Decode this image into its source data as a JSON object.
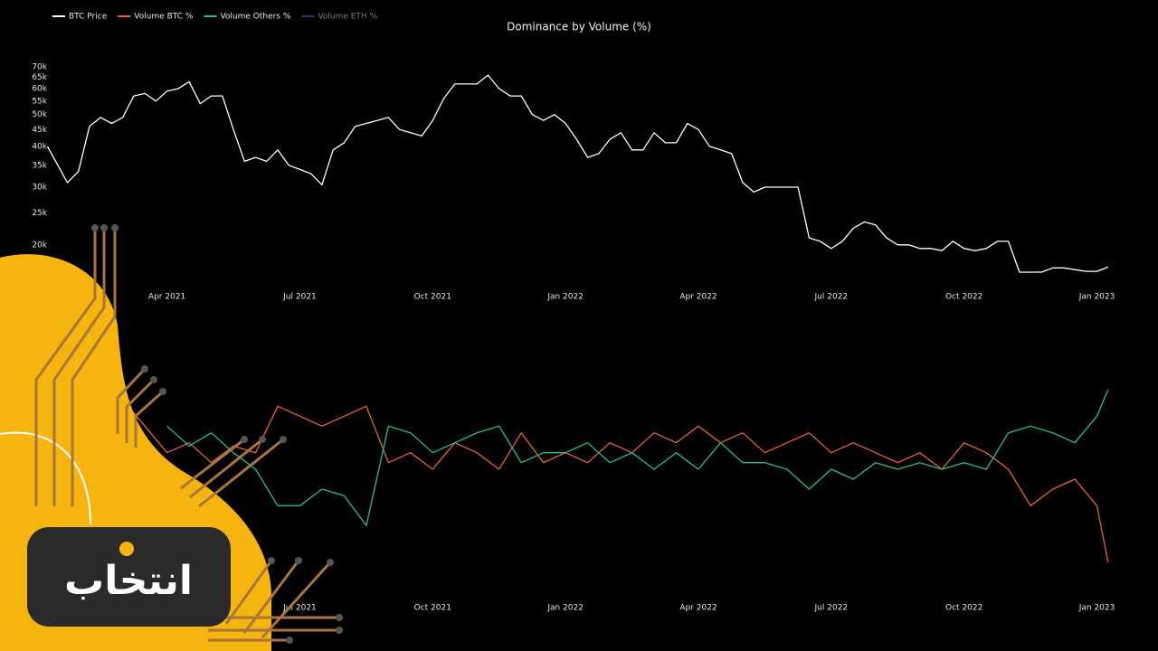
{
  "chart_data": [
    {
      "type": "line",
      "title": "Dominance by Volume (%)",
      "yscale": "log",
      "grid": false,
      "x": [
        0.3,
        0.75,
        1.0,
        1.25,
        1.5,
        1.75,
        2.0,
        2.25,
        2.5,
        2.75,
        3.0,
        3.25,
        3.5,
        3.75,
        4.0,
        4.25,
        4.5,
        4.75,
        5.0,
        5.25,
        5.5,
        5.75,
        6.0,
        6.25,
        6.5,
        6.75,
        7.0,
        7.25,
        7.5,
        7.75,
        8.0,
        8.25,
        8.5,
        8.75,
        9.0,
        9.25,
        9.5,
        9.75,
        10.0,
        10.25,
        10.5,
        10.75,
        11.0,
        11.25,
        11.5,
        11.75,
        12.0,
        12.25,
        12.5,
        12.75,
        13.0,
        13.25,
        13.5,
        13.75,
        14.0,
        14.25,
        14.5,
        14.75,
        15.0,
        15.25,
        15.5,
        15.75,
        16.0,
        16.25,
        16.5,
        16.75,
        17.0,
        17.25,
        17.5,
        17.75,
        18.0,
        18.25,
        18.5,
        18.75,
        19.0,
        19.25,
        19.5,
        19.75,
        20.0,
        20.25,
        20.5,
        20.75,
        21.0,
        21.25,
        21.5,
        21.75,
        22.0,
        22.25,
        22.5,
        22.75,
        23.0,
        23.25,
        23.5,
        23.75,
        24.0,
        24.25
      ],
      "series": [
        {
          "name": "BTC Price",
          "color": "#ffffff",
          "values": [
            40000,
            31000,
            33500,
            46000,
            49000,
            47000,
            49000,
            57000,
            58000,
            55000,
            59000,
            60000,
            63000,
            54000,
            57000,
            57000,
            45000,
            36000,
            37000,
            36000,
            39000,
            35000,
            34000,
            33000,
            30500,
            39000,
            41000,
            46000,
            47000,
            48000,
            49000,
            45000,
            44000,
            43000,
            48000,
            56000,
            62000,
            62000,
            62000,
            66000,
            60000,
            57000,
            57000,
            50000,
            48000,
            50000,
            47000,
            42000,
            37000,
            38000,
            42000,
            44000,
            39000,
            39000,
            44000,
            41000,
            41000,
            47000,
            45000,
            40000,
            39000,
            38000,
            31000,
            29000,
            30000,
            30000,
            30000,
            30000,
            21000,
            20500,
            19500,
            20500,
            22500,
            23500,
            23000,
            21000,
            20000,
            20000,
            19500,
            19500,
            19200,
            20500,
            19500,
            19200,
            19500,
            20500,
            20500,
            16500,
            16500,
            16500,
            17000,
            17000,
            16800,
            16600,
            16600,
            17100
          ]
        }
      ],
      "xlim": [
        0.25,
        24.5
      ],
      "xticks": [
        {
          "value": 3,
          "label": "Apr 2021"
        },
        {
          "value": 6,
          "label": "Jul 2021"
        },
        {
          "value": 9,
          "label": "Oct 2021"
        },
        {
          "value": 12,
          "label": "Jan 2022"
        },
        {
          "value": 15,
          "label": "Apr 2022"
        },
        {
          "value": 18,
          "label": "Jul 2022"
        },
        {
          "value": 21,
          "label": "Oct 2022"
        },
        {
          "value": 24,
          "label": "Jan 2023"
        }
      ],
      "ylim": [
        15000,
        75000
      ],
      "yticks": [
        {
          "value": 20000,
          "label": "20k"
        },
        {
          "value": 25000,
          "label": "25k"
        },
        {
          "value": 30000,
          "label": "30k"
        },
        {
          "value": 35000,
          "label": "35k"
        },
        {
          "value": 40000,
          "label": "40k"
        },
        {
          "value": 45000,
          "label": "45k"
        },
        {
          "value": 50000,
          "label": "50k"
        },
        {
          "value": 55000,
          "label": "55k"
        },
        {
          "value": 60000,
          "label": "60k"
        },
        {
          "value": 65000,
          "label": "65k"
        },
        {
          "value": 70000,
          "label": "70k"
        }
      ]
    },
    {
      "type": "line",
      "grid": false,
      "x": [
        2.0,
        2.5,
        3.0,
        3.5,
        4.0,
        4.5,
        5.0,
        5.5,
        6.0,
        6.5,
        7.0,
        7.5,
        8.0,
        8.5,
        9.0,
        9.5,
        10.0,
        10.5,
        11.0,
        11.5,
        12.0,
        12.5,
        13.0,
        13.5,
        14.0,
        14.5,
        15.0,
        15.5,
        16.0,
        16.5,
        17.0,
        17.5,
        18.0,
        18.5,
        19.0,
        19.5,
        20.0,
        20.5,
        21.0,
        21.5,
        22.0,
        22.5,
        23.0,
        23.5,
        24.0,
        24.25
      ],
      "series": [
        {
          "name": "Volume BTC %",
          "color": "#e8603c",
          "values": [
            54,
            46,
            38,
            41,
            35,
            40,
            38,
            52,
            49,
            46,
            49,
            52,
            35,
            38,
            33,
            41,
            38,
            33,
            44,
            35,
            38,
            35,
            41,
            38,
            44,
            41,
            46,
            41,
            44,
            38,
            41,
            44,
            38,
            41,
            38,
            35,
            38,
            33,
            41,
            38,
            33,
            22,
            27,
            30,
            22,
            5
          ]
        },
        {
          "name": "Volume Others %",
          "color": "#1fbf8f",
          "values": [
            null,
            null,
            46,
            40,
            44,
            38,
            33,
            22,
            22,
            27,
            25,
            16,
            46,
            44,
            38,
            41,
            44,
            46,
            35,
            38,
            38,
            41,
            35,
            38,
            33,
            38,
            33,
            41,
            35,
            35,
            33,
            27,
            33,
            30,
            35,
            33,
            35,
            33,
            35,
            33,
            44,
            46,
            44,
            41,
            49,
            57
          ]
        },
        {
          "name": "Volume ETH %",
          "color": "#6a55b0",
          "visible": false
        }
      ],
      "xlim": [
        0.25,
        24.5
      ],
      "xticks": [
        {
          "value": 6,
          "label": "Jul 2021"
        },
        {
          "value": 9,
          "label": "Oct 2021"
        },
        {
          "value": 12,
          "label": "Jan 2022"
        },
        {
          "value": 15,
          "label": "Apr 2022"
        },
        {
          "value": 18,
          "label": "Jul 2022"
        },
        {
          "value": 21,
          "label": "Oct 2022"
        },
        {
          "value": 24,
          "label": "Jan 2023"
        }
      ],
      "ylim": [
        0,
        60
      ]
    }
  ],
  "watermark": "انتخاب"
}
